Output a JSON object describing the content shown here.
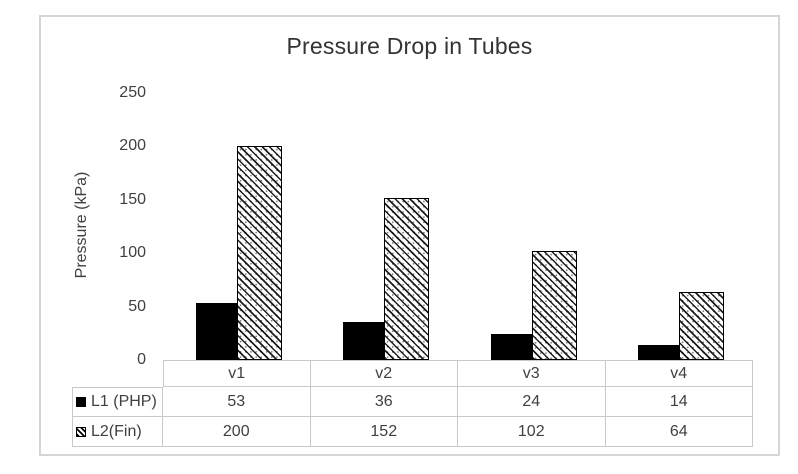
{
  "chart_data": {
    "type": "bar",
    "title": "Pressure Drop in Tubes",
    "xlabel": "",
    "ylabel": "Pressure (kPa)",
    "categories": [
      "v1",
      "v2",
      "v3",
      "v4"
    ],
    "series": [
      {
        "name": "L1 (PHP)",
        "values": [
          53,
          36,
          24,
          14
        ],
        "fill": "solid",
        "color": "#000000"
      },
      {
        "name": "L2(Fin)",
        "values": [
          200,
          152,
          102,
          64
        ],
        "fill": "diagonal-hatch",
        "color": "#000000"
      }
    ],
    "ylim": [
      0,
      250
    ],
    "yticks": [
      0,
      50,
      100,
      150,
      200,
      250
    ],
    "grid": false,
    "legend_position": "data-table-left",
    "data_table_shown": true
  },
  "colors": {
    "background": "#ffffff",
    "chart_border": "#d5d5d5",
    "table_border": "#c9c9c9",
    "text": "#404040",
    "title_text": "#333333",
    "bar_fill": "#000000"
  }
}
